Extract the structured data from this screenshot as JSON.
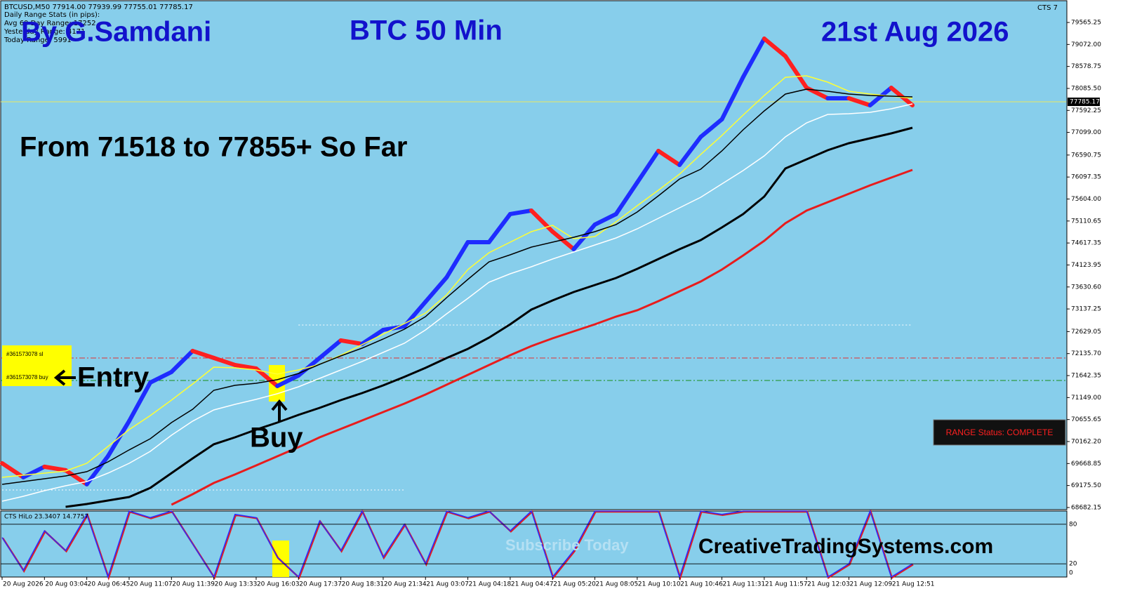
{
  "header": {
    "symbol_line": "BTCUSD,M50  77914.00 77939.99 77755.01 77785.17",
    "stats_title": "Daily Range Stats (in pips):",
    "stats": [
      "Avg 60 Day Range: 17252",
      "Yesterday Range: 4171",
      "Today Range: 5991"
    ],
    "indicator_name": "CTS 7"
  },
  "annotations": {
    "author": "By G.Samdani",
    "timeframe": "BTC 50 Min",
    "date": "21st Aug 2026",
    "result": "From 71518 to 77855+ So Far",
    "entry": "Entry",
    "buy": "Buy",
    "website": "CreativeTradingSystems.com",
    "watermark": "Subscribe Today",
    "range_status": "RANGE Status: COMPLETE",
    "order_sl": "#361573078 sl",
    "order_buy": "#361573078 buy"
  },
  "chart_data": [
    {
      "type": "line",
      "categories": [
        "20 Aug 2026",
        null,
        "20 Aug 03:04",
        null,
        "20 Aug 06:45",
        null,
        "20 Aug 11:07",
        null,
        "20 Aug 11:39",
        null,
        "20 Aug 13:33",
        null,
        "20 Aug 16:03",
        null,
        "20 Aug 17:37",
        null,
        "20 Aug 18:31",
        null,
        "20 Aug 21:34",
        null,
        "21 Aug 03:07",
        null,
        "21 Aug 04:18",
        null,
        "21 Aug 04:47",
        null,
        "21 Aug 05:20",
        null,
        "21 Aug 08:05",
        null,
        "21 Aug 10:10",
        null,
        "21 Aug 10:46",
        null,
        "21 Aug 11:31",
        null,
        "21 Aug 11:57",
        null,
        "21 Aug 12:03",
        null,
        "21 Aug 12:09",
        null,
        "21 Aug 12:51",
        null
      ],
      "ylim": [
        68650,
        80038
      ],
      "yticks": [
        79565.25,
        {
          "value": 79072,
          "label": "79072.00"
        },
        78578.75,
        {
          "value": 78085.5,
          "label": "78085.50"
        },
        77592.25,
        {
          "value": 77099,
          "label": "77099.00"
        },
        76590.75,
        76097.35,
        {
          "value": 75604,
          "label": "75604.00"
        },
        75110.65,
        74617.35,
        74123.95,
        {
          "value": 73630.6,
          "label": "73630.60"
        },
        73137.25,
        72629.05,
        {
          "value": 72135.7,
          "label": "72135.70"
        },
        71642.35,
        {
          "value": 71149,
          "label": "71149.00"
        },
        70655.65,
        {
          "value": 70162.2,
          "label": "70162.20"
        },
        69668.85,
        {
          "value": 69175.5,
          "label": "69175.50"
        },
        68682.15
      ],
      "last_price": 77785.17,
      "last_price_color": "#e8e860",
      "levels": [
        {
          "value": 72037,
          "color": "#e03030",
          "style": "dash-dot"
        },
        {
          "value": 71533,
          "color": "#1a8f1a",
          "style": "dash-dot"
        },
        {
          "value": 72777,
          "color": "#ffffff",
          "style": "dotted",
          "x_from": 14,
          "x_to": 43
        },
        {
          "value": 69076,
          "color": "#ffffff",
          "style": "dotted",
          "x_from": 0,
          "x_to": 19
        }
      ],
      "series": [
        {
          "role": "price",
          "up_color": "#1e2cff",
          "down_color": "#ff2020",
          "width": 6,
          "values": [
            69675,
            69360,
            69597,
            69518,
            69203,
            69833,
            70620,
            71486,
            71723,
            72195,
            72038,
            71880,
            71801,
            71408,
            71644,
            72038,
            72431,
            72352,
            72667,
            72746,
            73297,
            73848,
            74636,
            74636,
            75266,
            75345,
            74872,
            74478,
            75030,
            75266,
            75975,
            76683,
            76368,
            76998,
            77392,
            78337,
            79203,
            78809,
            78100,
            77864,
            77864,
            77707,
            78100,
            77707
          ]
        },
        {
          "color": "#ffff33",
          "width": 1.5,
          "values": [
            69359,
            69407,
            69454,
            69501,
            69674,
            70052,
            70430,
            70745,
            71092,
            71454,
            71832,
            71816,
            71769,
            71675,
            71769,
            71895,
            72100,
            72336,
            72573,
            72809,
            73045,
            73455,
            74021,
            74399,
            74636,
            74872,
            75014,
            74714,
            74762,
            75092,
            75454,
            75801,
            76163,
            76604,
            77030,
            77486,
            77927,
            78336,
            78368,
            78226,
            78022,
            77959,
            77911,
            77864
          ]
        },
        {
          "color": "#000000",
          "width": 1.5,
          "values": [
            69202,
            69265,
            69328,
            69391,
            69486,
            69706,
            69974,
            70225,
            70588,
            70887,
            71312,
            71423,
            71470,
            71549,
            71690,
            71895,
            72084,
            72257,
            72462,
            72683,
            72966,
            73391,
            73801,
            74194,
            74352,
            74525,
            74636,
            74746,
            74872,
            75030,
            75313,
            75675,
            76053,
            76274,
            76683,
            77155,
            77581,
            77959,
            78069,
            78022,
            77959,
            77927,
            77911,
            77896
          ]
        },
        {
          "color": "#ffffff",
          "width": 1.5,
          "values": [
            68824,
            68934,
            69060,
            69170,
            69265,
            69454,
            69674,
            69942,
            70304,
            70620,
            70871,
            70997,
            71108,
            71234,
            71391,
            71580,
            71769,
            71958,
            72163,
            72367,
            72667,
            73029,
            73375,
            73738,
            73927,
            74084,
            74257,
            74415,
            74572,
            74730,
            74934,
            75171,
            75407,
            75643,
            75943,
            76242,
            76573,
            76998,
            77313,
            77502,
            77518,
            77549,
            77628,
            77738
          ]
        },
        {
          "color": "#000000",
          "width": 3,
          "values": [
            null,
            null,
            null,
            68698,
            68761,
            68839,
            68918,
            69123,
            69454,
            69784,
            70100,
            70257,
            70430,
            70588,
            70761,
            70918,
            71092,
            71249,
            71422,
            71612,
            71816,
            72037,
            72241,
            72493,
            72793,
            73123,
            73328,
            73517,
            73675,
            73832,
            74037,
            74257,
            74478,
            74683,
            74966,
            75266,
            75659,
            76289,
            76494,
            76698,
            76856,
            76966,
            77077,
            77203
          ]
        },
        {
          "color": "#e81c1c",
          "width": 3,
          "values": [
            null,
            null,
            null,
            null,
            null,
            null,
            null,
            null,
            68745,
            68981,
            69233,
            69424,
            69627,
            69832,
            70036,
            70257,
            70446,
            70635,
            70824,
            71013,
            71218,
            71438,
            71659,
            71879,
            72100,
            72304,
            72478,
            72635,
            72793,
            72966,
            73108,
            73312,
            73533,
            73753,
            74021,
            74336,
            74667,
            75061,
            75344,
            75533,
            75722,
            75911,
            76084,
            76258
          ]
        }
      ]
    },
    {
      "type": "line",
      "title": "CTS HiLo 23.3407 14.7757",
      "ylim": [
        0,
        100
      ],
      "yticks": [
        0,
        20,
        80
      ],
      "color": "#2a2aff",
      "shadow_color": "#e02020",
      "values": [
        60,
        10,
        70,
        40,
        95,
        0,
        100,
        90,
        100,
        50,
        0,
        95,
        90,
        30,
        0,
        85,
        40,
        100,
        30,
        80,
        20,
        100,
        90,
        100,
        70,
        100,
        0,
        40,
        100,
        100,
        100,
        100,
        0,
        100,
        95,
        100,
        100,
        100,
        100,
        0,
        20,
        100,
        0,
        20
      ]
    }
  ]
}
